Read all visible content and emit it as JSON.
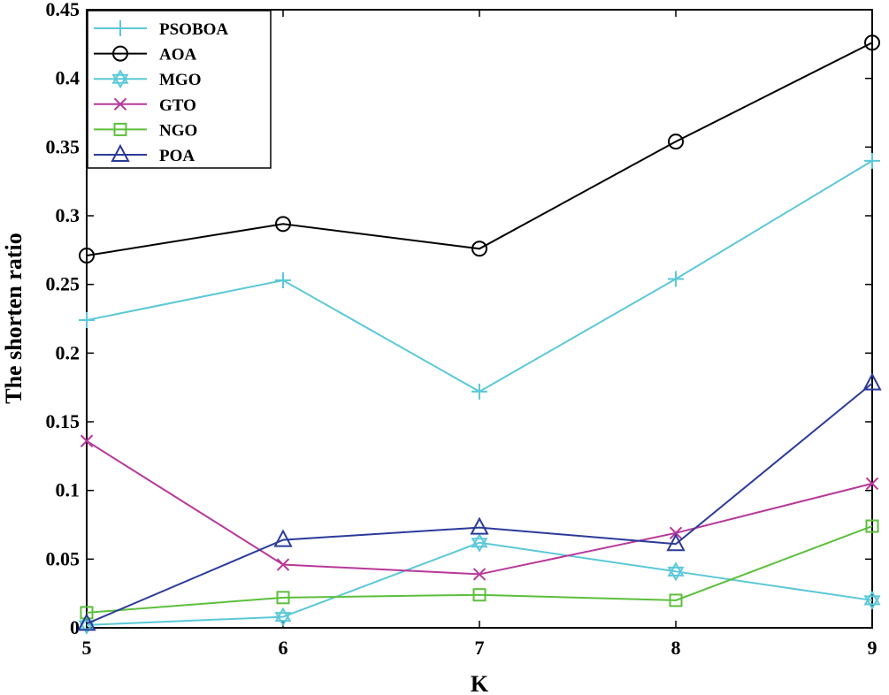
{
  "chart_data": {
    "type": "line",
    "title": "",
    "xlabel": "K",
    "ylabel": "The shorten ratio",
    "x": [
      5,
      6,
      7,
      8,
      9
    ],
    "xlim": [
      5,
      9
    ],
    "ylim": [
      0,
      0.45
    ],
    "xticks": [
      "5",
      "6",
      "7",
      "8",
      "9"
    ],
    "yticks": [
      "0",
      "0.05",
      "0.1",
      "0.15",
      "0.2",
      "0.25",
      "0.3",
      "0.35",
      "0.4",
      "0.45"
    ],
    "ytick_values": [
      0,
      0.05,
      0.1,
      0.15,
      0.2,
      0.25,
      0.3,
      0.35,
      0.4,
      0.45
    ],
    "grid": false,
    "legend_position": "top-left",
    "series": [
      {
        "name": "PSOBOA",
        "color": "#5bc8d8",
        "marker": "plus",
        "values": [
          0.224,
          0.253,
          0.172,
          0.254,
          0.34
        ]
      },
      {
        "name": "AOA",
        "color": "#000000",
        "marker": "circle",
        "values": [
          0.271,
          0.294,
          0.276,
          0.354,
          0.426
        ]
      },
      {
        "name": "MGO",
        "color": "#5bc8d8",
        "marker": "hexagram",
        "values": [
          0.002,
          0.008,
          0.062,
          0.041,
          0.02
        ]
      },
      {
        "name": "GTO",
        "color": "#b8389a",
        "marker": "x",
        "values": [
          0.136,
          0.046,
          0.039,
          0.069,
          0.105
        ]
      },
      {
        "name": "NGO",
        "color": "#5cbf3c",
        "marker": "square",
        "values": [
          0.011,
          0.022,
          0.024,
          0.02,
          0.074
        ]
      },
      {
        "name": "POA",
        "color": "#2b3a9a",
        "marker": "triangle",
        "values": [
          0.003,
          0.064,
          0.073,
          0.061,
          0.178
        ]
      }
    ]
  }
}
